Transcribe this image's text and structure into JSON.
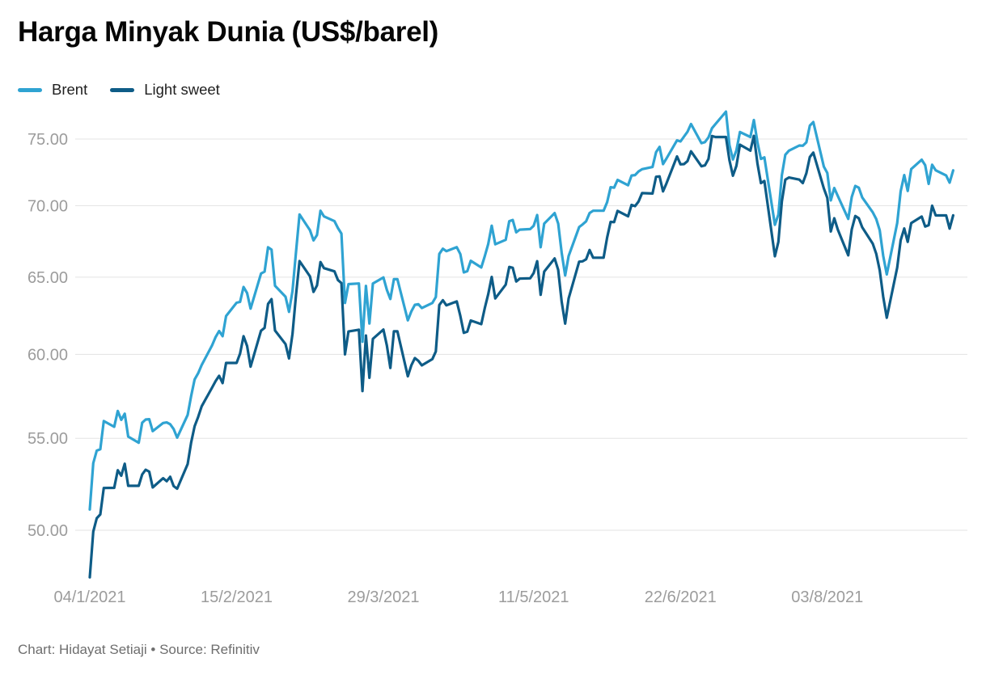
{
  "header": {
    "title": "Harga Minyak Dunia (US$/barel)"
  },
  "footer": {
    "text": "Chart: Hidayat Setiaji • Source: Refinitiv"
  },
  "chart_data": {
    "type": "line",
    "title": "Harga Minyak Dunia (US$/barel)",
    "xlabel": "",
    "ylabel": "US$/barel",
    "y_scale": "log",
    "grid": "horizontal",
    "legend_position": "top-left",
    "ylim": [
      47,
      77.5
    ],
    "y_ticks": [
      {
        "value": 75,
        "label": "75.00"
      },
      {
        "value": 70,
        "label": "70.00"
      },
      {
        "value": 65,
        "label": "65.00"
      },
      {
        "value": 60,
        "label": "60.00"
      },
      {
        "value": 55,
        "label": "55.00"
      },
      {
        "value": 50,
        "label": "50.00"
      }
    ],
    "x_tick_labels": [
      "04/1/2021",
      "15/2/2021",
      "29/3/2021",
      "11/5/2021",
      "22/6/2021",
      "03/8/2021"
    ],
    "dates": [
      "2021-01-04",
      "2021-01-05",
      "2021-01-06",
      "2021-01-07",
      "2021-01-08",
      "2021-01-11",
      "2021-01-12",
      "2021-01-13",
      "2021-01-14",
      "2021-01-15",
      "2021-01-18",
      "2021-01-19",
      "2021-01-20",
      "2021-01-21",
      "2021-01-22",
      "2021-01-25",
      "2021-01-26",
      "2021-01-27",
      "2021-01-28",
      "2021-01-29",
      "2021-02-01",
      "2021-02-02",
      "2021-02-03",
      "2021-02-04",
      "2021-02-05",
      "2021-02-08",
      "2021-02-09",
      "2021-02-10",
      "2021-02-11",
      "2021-02-12",
      "2021-02-15",
      "2021-02-16",
      "2021-02-17",
      "2021-02-18",
      "2021-02-19",
      "2021-02-22",
      "2021-02-23",
      "2021-02-24",
      "2021-02-25",
      "2021-02-26",
      "2021-03-01",
      "2021-03-02",
      "2021-03-03",
      "2021-03-04",
      "2021-03-05",
      "2021-03-08",
      "2021-03-09",
      "2021-03-10",
      "2021-03-11",
      "2021-03-12",
      "2021-03-15",
      "2021-03-16",
      "2021-03-17",
      "2021-03-18",
      "2021-03-19",
      "2021-03-22",
      "2021-03-23",
      "2021-03-24",
      "2021-03-25",
      "2021-03-26",
      "2021-03-29",
      "2021-03-30",
      "2021-03-31",
      "2021-04-01",
      "2021-04-02",
      "2021-04-05",
      "2021-04-06",
      "2021-04-07",
      "2021-04-08",
      "2021-04-09",
      "2021-04-12",
      "2021-04-13",
      "2021-04-14",
      "2021-04-15",
      "2021-04-16",
      "2021-04-19",
      "2021-04-20",
      "2021-04-21",
      "2021-04-22",
      "2021-04-23",
      "2021-04-26",
      "2021-04-27",
      "2021-04-28",
      "2021-04-29",
      "2021-04-30",
      "2021-05-03",
      "2021-05-04",
      "2021-05-05",
      "2021-05-06",
      "2021-05-07",
      "2021-05-10",
      "2021-05-11",
      "2021-05-12",
      "2021-05-13",
      "2021-05-14",
      "2021-05-17",
      "2021-05-18",
      "2021-05-19",
      "2021-05-20",
      "2021-05-21",
      "2021-05-24",
      "2021-05-25",
      "2021-05-26",
      "2021-05-27",
      "2021-05-28",
      "2021-05-31",
      "2021-06-01",
      "2021-06-02",
      "2021-06-03",
      "2021-06-04",
      "2021-06-07",
      "2021-06-08",
      "2021-06-09",
      "2021-06-10",
      "2021-06-11",
      "2021-06-14",
      "2021-06-15",
      "2021-06-16",
      "2021-06-17",
      "2021-06-18",
      "2021-06-21",
      "2021-06-22",
      "2021-06-23",
      "2021-06-24",
      "2021-06-25",
      "2021-06-28",
      "2021-06-29",
      "2021-06-30",
      "2021-07-01",
      "2021-07-02",
      "2021-07-05",
      "2021-07-06",
      "2021-07-07",
      "2021-07-08",
      "2021-07-09",
      "2021-07-12",
      "2021-07-13",
      "2021-07-14",
      "2021-07-15",
      "2021-07-16",
      "2021-07-19",
      "2021-07-20",
      "2021-07-21",
      "2021-07-22",
      "2021-07-23",
      "2021-07-26",
      "2021-07-27",
      "2021-07-28",
      "2021-07-29",
      "2021-07-30",
      "2021-08-02",
      "2021-08-03",
      "2021-08-04",
      "2021-08-05",
      "2021-08-06",
      "2021-08-09",
      "2021-08-10",
      "2021-08-11",
      "2021-08-12",
      "2021-08-13",
      "2021-08-16",
      "2021-08-17",
      "2021-08-18",
      "2021-08-19",
      "2021-08-20",
      "2021-08-23",
      "2021-08-24",
      "2021-08-25",
      "2021-08-26",
      "2021-08-27",
      "2021-08-30",
      "2021-08-31",
      "2021-09-01",
      "2021-09-02",
      "2021-09-03",
      "2021-09-06",
      "2021-09-07",
      "2021-09-08"
    ],
    "series": [
      {
        "name": "Brent",
        "color": "#2FA3D2",
        "values": [
          51.09,
          53.6,
          54.3,
          54.38,
          55.99,
          55.66,
          56.58,
          56.06,
          56.42,
          55.1,
          54.75,
          55.9,
          56.08,
          56.1,
          55.41,
          55.88,
          55.91,
          55.81,
          55.53,
          55.04,
          56.35,
          57.46,
          58.46,
          58.84,
          59.34,
          60.56,
          61.09,
          61.47,
          61.14,
          62.43,
          63.3,
          63.35,
          64.34,
          63.93,
          62.91,
          65.24,
          65.37,
          67.04,
          66.88,
          64.42,
          63.69,
          62.7,
          64.07,
          66.74,
          69.36,
          68.24,
          67.52,
          67.9,
          69.63,
          69.22,
          68.88,
          68.39,
          68.0,
          63.28,
          64.53,
          64.57,
          60.79,
          64.41,
          61.95,
          64.57,
          64.98,
          64.14,
          63.54,
          64.86,
          64.86,
          62.15,
          62.74,
          63.16,
          63.2,
          62.95,
          63.28,
          63.67,
          66.58,
          66.94,
          66.77,
          67.05,
          66.57,
          65.32,
          65.4,
          66.11,
          65.65,
          66.42,
          67.27,
          68.56,
          67.25,
          67.56,
          68.88,
          68.96,
          68.09,
          68.28,
          68.32,
          68.55,
          69.32,
          67.05,
          68.71,
          69.46,
          68.71,
          66.66,
          65.11,
          66.44,
          68.46,
          68.65,
          68.87,
          69.46,
          69.63,
          69.63,
          70.25,
          71.35,
          71.31,
          71.89,
          71.49,
          72.22,
          72.25,
          72.52,
          72.69,
          72.86,
          73.99,
          74.39,
          73.08,
          73.51,
          74.9,
          74.81,
          75.19,
          75.56,
          76.18,
          74.68,
          74.76,
          75.13,
          75.84,
          76.17,
          77.16,
          74.53,
          73.43,
          74.12,
          75.55,
          75.16,
          76.49,
          74.76,
          73.47,
          73.59,
          68.62,
          69.35,
          72.23,
          73.79,
          74.1,
          74.5,
          74.48,
          74.74,
          76.05,
          76.33,
          72.89,
          72.41,
          70.38,
          71.29,
          70.7,
          69.04,
          70.63,
          71.44,
          71.31,
          70.59,
          69.51,
          69.03,
          68.23,
          66.45,
          65.18,
          68.75,
          71.05,
          72.25,
          71.07,
          72.7,
          73.41,
          72.99,
          71.59,
          73.03,
          72.61,
          72.22,
          71.69,
          72.6
        ]
      },
      {
        "name": "Light sweet",
        "color": "#0E5C87",
        "values": [
          47.62,
          49.93,
          50.63,
          50.83,
          52.24,
          52.25,
          53.21,
          52.91,
          53.57,
          52.36,
          52.36,
          52.98,
          53.24,
          53.13,
          52.27,
          52.77,
          52.61,
          52.85,
          52.34,
          52.2,
          53.55,
          54.76,
          55.69,
          56.23,
          56.85,
          57.97,
          58.36,
          58.68,
          58.24,
          59.47,
          59.47,
          60.05,
          61.14,
          60.52,
          59.24,
          61.49,
          61.67,
          63.22,
          63.53,
          61.5,
          60.64,
          59.75,
          61.28,
          63.83,
          66.09,
          65.05,
          64.01,
          64.44,
          66.02,
          65.61,
          65.39,
          64.8,
          64.6,
          60.0,
          61.44,
          61.55,
          57.76,
          61.18,
          58.56,
          60.97,
          61.56,
          60.55,
          59.16,
          61.45,
          61.45,
          58.65,
          59.33,
          59.77,
          59.6,
          59.32,
          59.7,
          60.18,
          63.15,
          63.46,
          63.13,
          63.38,
          62.44,
          61.35,
          61.43,
          62.14,
          61.91,
          62.94,
          63.86,
          65.01,
          63.58,
          64.49,
          65.69,
          65.63,
          64.71,
          64.9,
          64.92,
          65.28,
          66.08,
          63.82,
          65.37,
          66.27,
          65.49,
          63.36,
          61.94,
          63.58,
          66.05,
          66.07,
          66.21,
          66.85,
          66.32,
          66.32,
          67.72,
          68.83,
          68.81,
          69.62,
          69.23,
          70.05,
          69.96,
          70.29,
          70.91,
          70.88,
          72.12,
          72.15,
          71.04,
          71.64,
          73.66,
          73.06,
          73.08,
          73.3,
          74.05,
          72.91,
          72.98,
          73.47,
          75.23,
          75.16,
          75.16,
          73.37,
          72.2,
          72.94,
          74.56,
          74.1,
          75.25,
          73.13,
          71.65,
          71.81,
          66.42,
          67.42,
          70.3,
          71.91,
          72.07,
          71.91,
          71.65,
          72.39,
          73.62,
          73.95,
          71.26,
          70.56,
          68.15,
          69.09,
          68.28,
          66.48,
          68.29,
          69.25,
          69.09,
          68.44,
          67.29,
          66.59,
          65.46,
          63.69,
          62.32,
          65.64,
          67.54,
          68.36,
          67.42,
          68.74,
          69.21,
          68.5,
          68.59,
          69.99,
          69.29,
          69.29,
          68.35,
          69.3
        ]
      }
    ]
  }
}
